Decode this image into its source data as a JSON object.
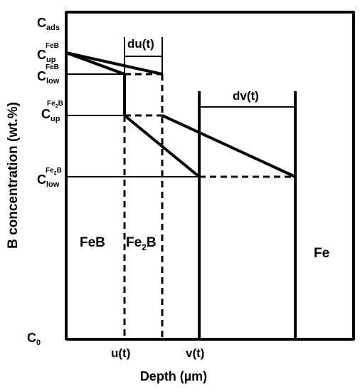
{
  "axes": {
    "ylabel": "B concentration (wt.%)",
    "xlabel": "Depth (µm)"
  },
  "y_levels": {
    "c_ads": {
      "base": "C",
      "sub": "ads"
    },
    "c_up_feb": {
      "base": "C",
      "sub": "up",
      "sup": "FeB"
    },
    "c_low_feb": {
      "base": "C",
      "sub": "low",
      "sup": "FeB"
    },
    "c_up_fe2b": {
      "base": "C",
      "sub": "up",
      "sup_a": "Fe",
      "sup_b": "2",
      "sup_c": "B"
    },
    "c_low_fe2b": {
      "base": "C",
      "sub": "low",
      "sup_a": "Fe",
      "sup_b": "2",
      "sup_c": "B"
    },
    "c_0": {
      "base": "C",
      "sub": "0"
    }
  },
  "x_marks": {
    "u": "u(t)",
    "v": "v(t)"
  },
  "increments": {
    "du": "du(t)",
    "dv": "dv(t)"
  },
  "phases": {
    "feb": "FeB",
    "fe2b_a": "Fe",
    "fe2b_b": "2",
    "fe2b_c": "B",
    "fe": "Fe"
  }
}
